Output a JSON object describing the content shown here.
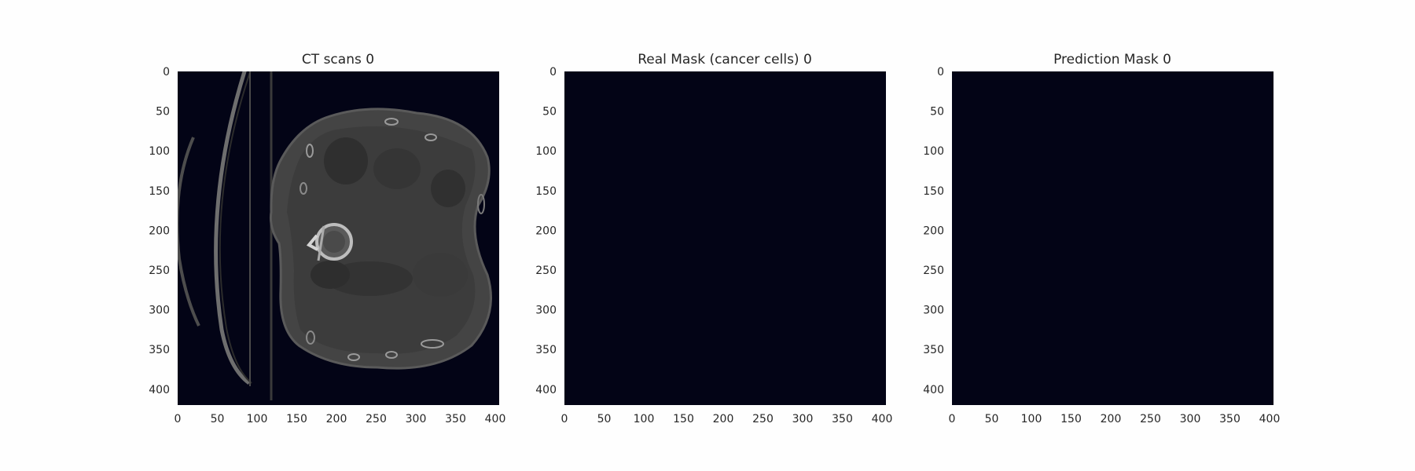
{
  "chart_data": [
    {
      "type": "heatmap",
      "title": "CT scans 0",
      "xlim": [
        0,
        405
      ],
      "ylim": [
        420,
        0
      ],
      "xticks": [
        0,
        50,
        100,
        150,
        200,
        250,
        300,
        350,
        400
      ],
      "yticks": [
        0,
        50,
        100,
        150,
        200,
        250,
        300,
        350,
        400
      ],
      "content": "axial CT slice (grayscale)"
    },
    {
      "type": "heatmap",
      "title": "Real Mask (cancer cells) 0",
      "xlim": [
        0,
        405
      ],
      "ylim": [
        420,
        0
      ],
      "xticks": [
        0,
        50,
        100,
        150,
        200,
        250,
        300,
        350,
        400
      ],
      "yticks": [
        0,
        50,
        100,
        150,
        200,
        250,
        300,
        350,
        400
      ],
      "content": "empty mask (all zero)"
    },
    {
      "type": "heatmap",
      "title": "Prediction Mask 0",
      "xlim": [
        0,
        405
      ],
      "ylim": [
        420,
        0
      ],
      "xticks": [
        0,
        50,
        100,
        150,
        200,
        250,
        300,
        350,
        400
      ],
      "yticks": [
        0,
        50,
        100,
        150,
        200,
        250,
        300,
        350,
        400
      ],
      "content": "empty mask (all zero)"
    }
  ],
  "colors": {
    "background": "#030416",
    "tissue": "#444444",
    "tissue_dark": "#303030",
    "bone": "#d4d4d4",
    "text": "#262626"
  }
}
